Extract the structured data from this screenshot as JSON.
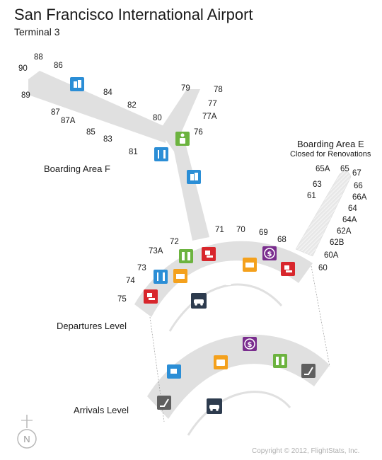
{
  "header": {
    "title": "San Francisco International Airport",
    "subtitle": "Terminal 3"
  },
  "labels": {
    "boarding_area_f": "Boarding Area F",
    "boarding_area_e": "Boarding Area E",
    "boarding_area_e_note": "Closed for Renovations",
    "departures_level": "Departures Level",
    "arrivals_level": "Arrivals Level",
    "north": "N",
    "copyright": "Copyright © 2012, FlightStats, Inc."
  },
  "gates": {
    "g90": "90",
    "g88": "88",
    "g86": "86",
    "g89": "89",
    "g84": "84",
    "g82": "82",
    "g87": "87",
    "g87a": "87A",
    "g85": "85",
    "g83": "83",
    "g81": "81",
    "g80": "80",
    "g79": "79",
    "g78": "78",
    "g77": "77",
    "g77a": "77A",
    "g76": "76",
    "g72": "72",
    "g71": "71",
    "g70": "70",
    "g69": "69",
    "g68": "68",
    "g73a": "73A",
    "g73": "73",
    "g74": "74",
    "g75": "75",
    "g65a": "65A",
    "g65": "65",
    "g67": "67",
    "g63": "63",
    "g66": "66",
    "g61": "61",
    "g66a": "66A",
    "g64": "64",
    "g64a": "64A",
    "g62a": "62A",
    "g62b": "62B",
    "g60a": "60A",
    "g60": "60"
  },
  "icons": {
    "restroom": "restroom-icon",
    "restaurant": "restaurant-icon",
    "shopping": "shopping-icon",
    "baggage_claim": "baggage-claim-icon",
    "currency_exchange": "currency-exchange-icon",
    "lounge": "lounge-icon",
    "ground_transportation": "ground-transportation-icon",
    "baggage": "baggage-icon",
    "coffee": "coffee-icon",
    "escalator": "escalator-icon",
    "family_restroom": "family-restroom-icon",
    "compass": "compass-icon"
  },
  "colors": {
    "concourse": "#e0e0e0",
    "closed_area": "#e6e6e6",
    "blue": "#2b8ed6",
    "green": "#6cb33f",
    "red": "#d8262c",
    "orange": "#f4a11d",
    "purple": "#7a2d8e",
    "navy": "#2d3b4e",
    "gray": "#5f5f5f"
  }
}
